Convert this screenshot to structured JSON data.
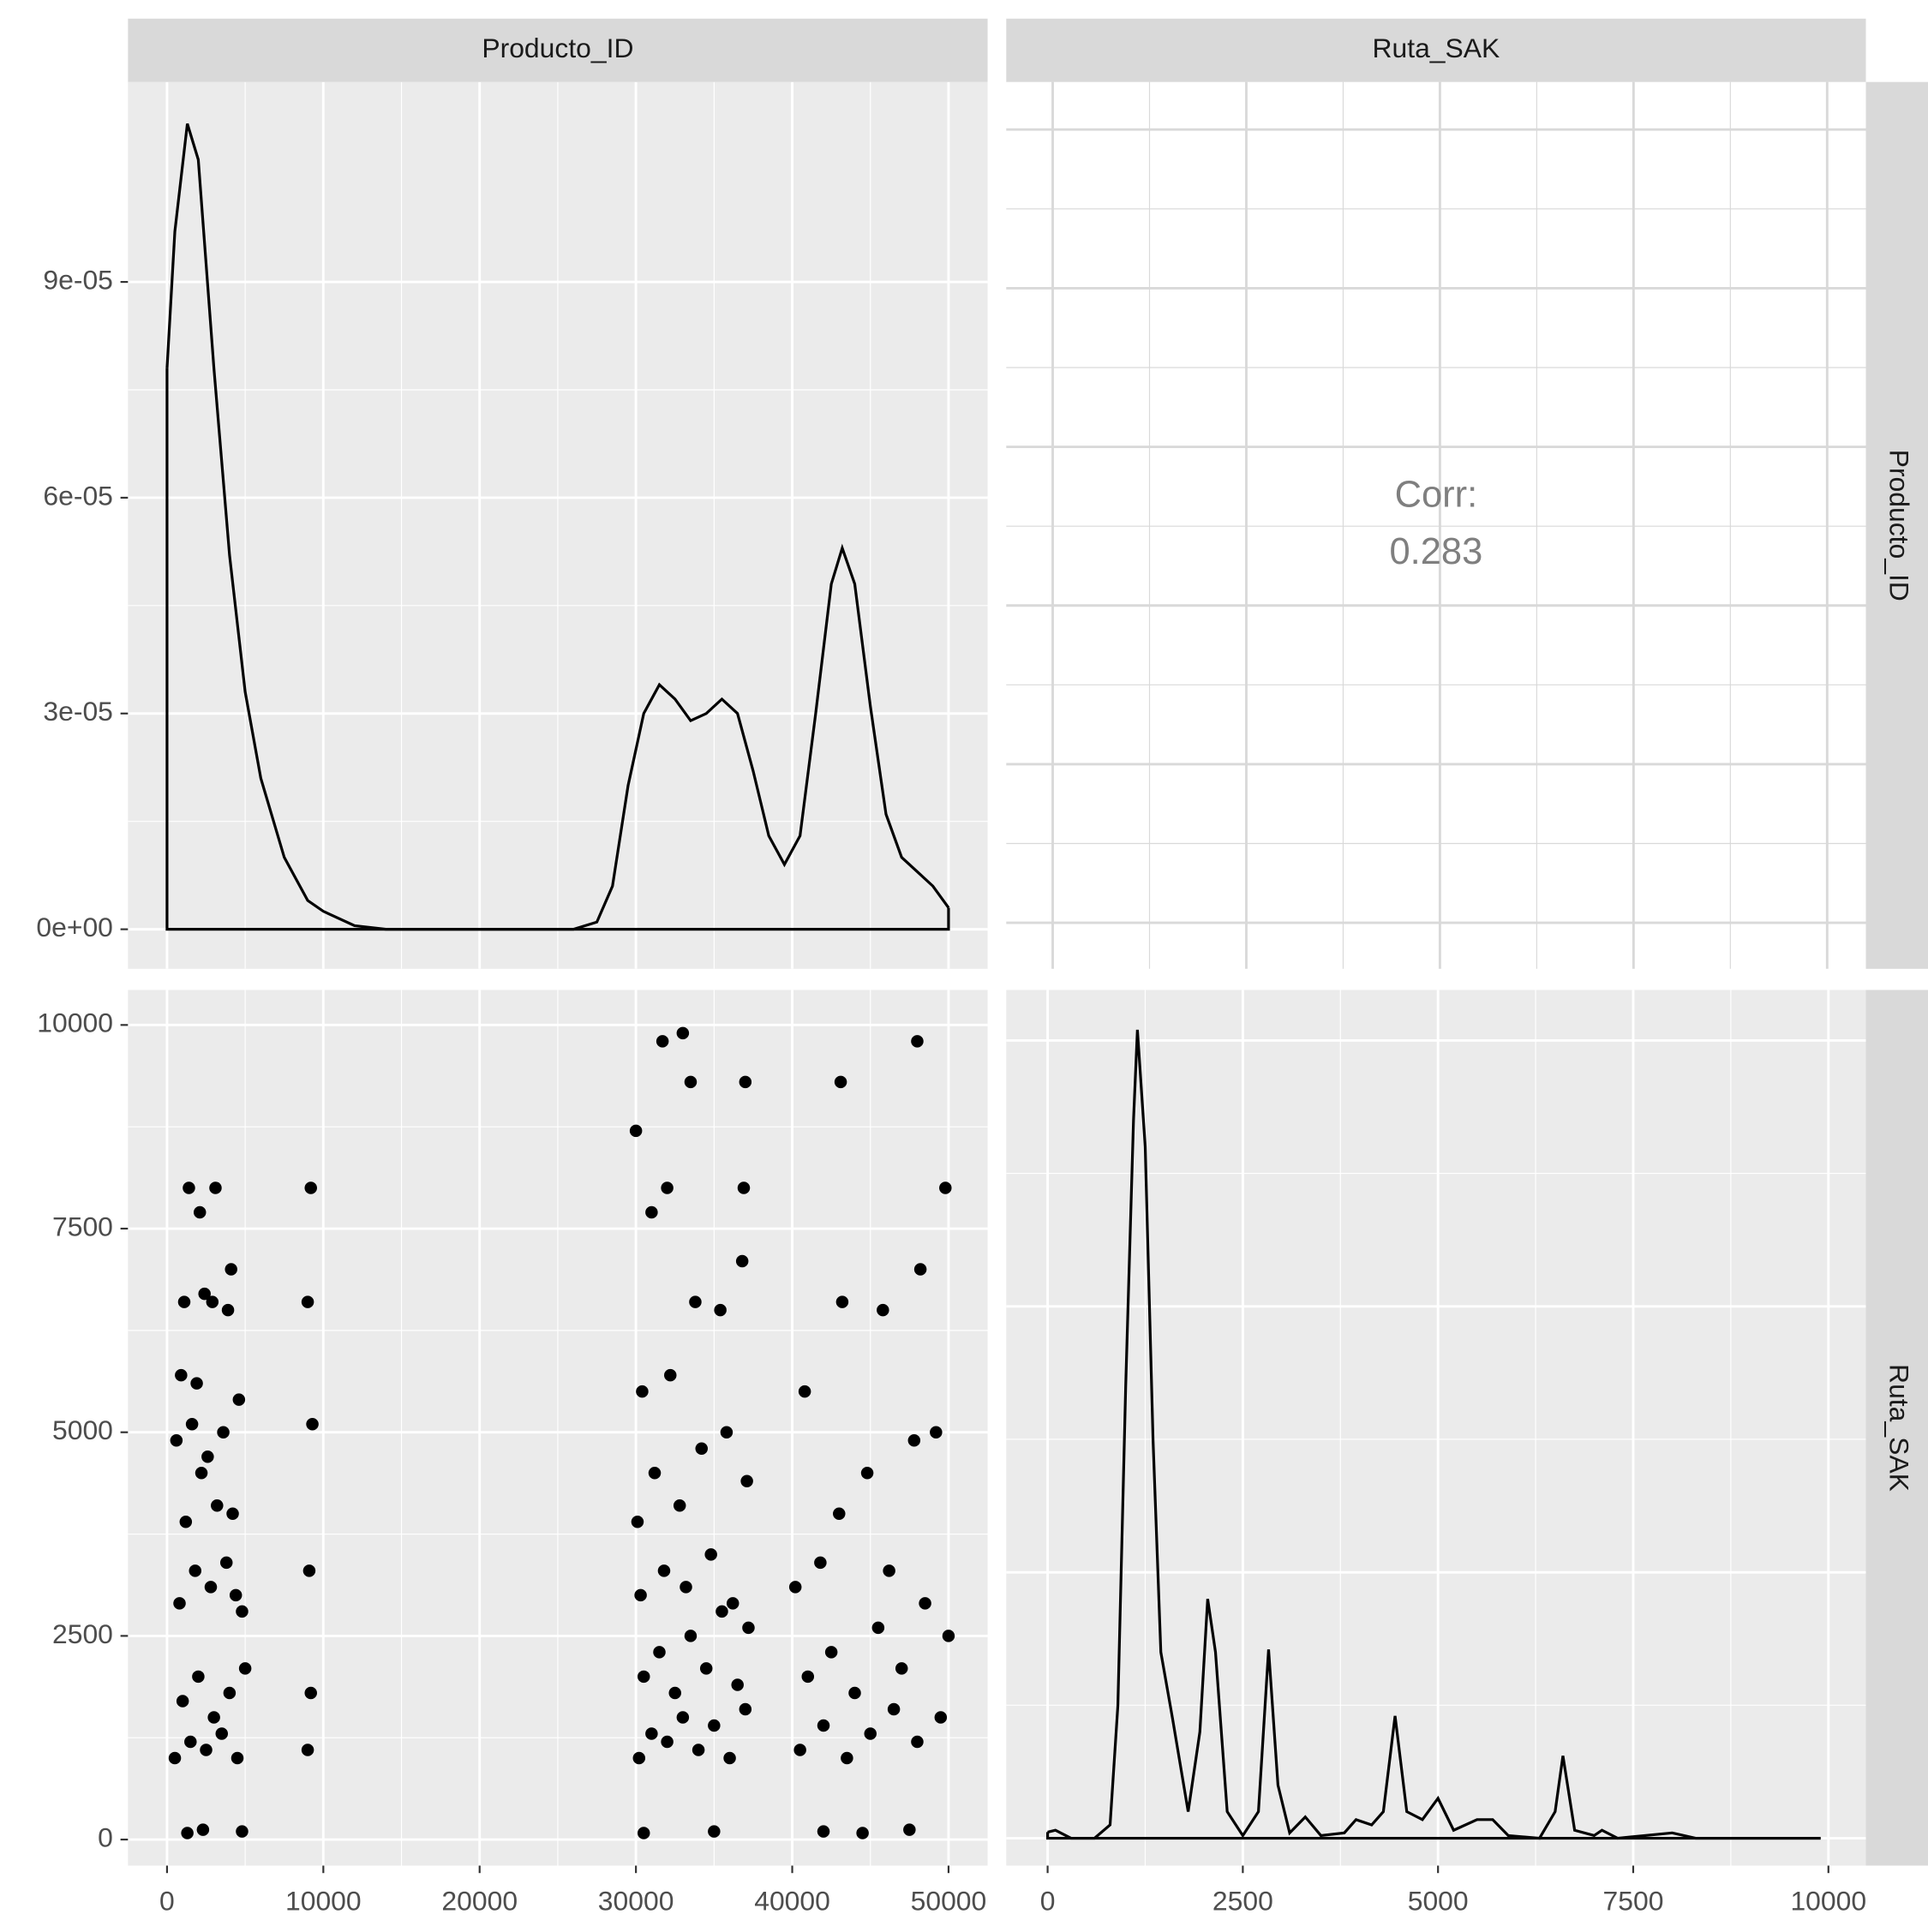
{
  "chart_data": [
    {
      "type": "density",
      "strip_top": "Producto_ID",
      "color": "#000000",
      "x": [
        0,
        500,
        1300,
        2000,
        3000,
        4000,
        5000,
        6000,
        7500,
        9000,
        10000,
        12000,
        14000,
        20000,
        26000,
        27500,
        28500,
        29500,
        30500,
        31500,
        32500,
        33500,
        34500,
        35500,
        36500,
        37500,
        38500,
        39500,
        40500,
        41500,
        42500,
        43200,
        44000,
        45000,
        46000,
        47000,
        48000,
        49000,
        50000
      ],
      "y": [
        7.8e-05,
        9.7e-05,
        0.000112,
        0.000107,
        7.8e-05,
        5.2e-05,
        3.3e-05,
        2.1e-05,
        1e-05,
        4e-06,
        2.5e-06,
        5e-07,
        0,
        0,
        0,
        1e-06,
        6e-06,
        2e-05,
        3e-05,
        3.4e-05,
        3.2e-05,
        2.9e-05,
        3e-05,
        3.2e-05,
        3e-05,
        2.2e-05,
        1.3e-05,
        9e-06,
        1.3e-05,
        3e-05,
        4.8e-05,
        5.3e-05,
        4.8e-05,
        3.1e-05,
        1.6e-05,
        1e-05,
        8e-06,
        6e-06,
        3e-06
      ],
      "xlim": [
        -2500,
        52500
      ],
      "ylim": [
        -5.5e-06,
        0.0001178
      ],
      "xticks": [
        0,
        10000,
        20000,
        30000,
        40000,
        50000
      ],
      "yticks": [
        {
          "value": 0,
          "label": "0e+00"
        },
        {
          "value": 3e-05,
          "label": "3e-05"
        },
        {
          "value": 6e-05,
          "label": "6e-05"
        },
        {
          "value": 9e-05,
          "label": "9e-05"
        }
      ]
    },
    {
      "type": "correlation",
      "strip_top": "Ruta_SAK",
      "strip_right": "Producto_ID",
      "label": "Corr:",
      "value": 0.283,
      "color": "#7f7f7f",
      "xlim": [
        -600,
        10500
      ],
      "ylim": [
        -2900,
        53000
      ],
      "xticks": [
        0,
        2500,
        5000,
        7500,
        10000
      ],
      "yticks": [
        0,
        10000,
        20000,
        30000,
        40000,
        50000
      ]
    },
    {
      "type": "scatter",
      "color": "#000000",
      "x": [
        500,
        1500,
        2500,
        3500,
        4500,
        1000,
        2000,
        3000,
        4000,
        5000,
        800,
        1800,
        2800,
        3800,
        4800,
        1200,
        2200,
        3200,
        4200,
        600,
        1600,
        2600,
        3600,
        4600,
        900,
        1900,
        2900,
        3900,
        1100,
        2100,
        3100,
        4100,
        1300,
        2300,
        4800,
        1400,
        2400,
        4400,
        9000,
        9200,
        9100,
        9300,
        9000,
        9200,
        30200,
        31000,
        32000,
        33000,
        34000,
        35000,
        36000,
        37000,
        30500,
        31500,
        32500,
        33500,
        34500,
        35500,
        36500,
        37200,
        30300,
        31800,
        33200,
        34800,
        36200,
        30100,
        31200,
        32800,
        34200,
        35800,
        37100,
        30400,
        32200,
        33800,
        35400,
        36800,
        31000,
        32000,
        33500,
        30000,
        31700,
        35000,
        37000,
        30500,
        33000,
        36900,
        40500,
        42000,
        43500,
        45000,
        46500,
        48000,
        49500,
        41000,
        42500,
        44000,
        45500,
        47000,
        48500,
        50000,
        40200,
        41800,
        43000,
        44800,
        46200,
        47800,
        49200,
        40800,
        43200,
        45800,
        48200,
        49800,
        42000,
        44500,
        47500,
        43100,
        48000
      ],
      "y": [
        1000,
        1200,
        1100,
        1300,
        1000,
        1700,
        2000,
        1500,
        1800,
        2100,
        2900,
        3300,
        3100,
        3400,
        2800,
        3900,
        4500,
        4100,
        4000,
        4900,
        5100,
        4700,
        5000,
        5400,
        5700,
        5600,
        6600,
        6500,
        6600,
        7700,
        8000,
        7000,
        80,
        120,
        100,
        8000,
        6700,
        3000,
        1100,
        1800,
        3300,
        5100,
        6600,
        8000,
        1000,
        1300,
        1200,
        1500,
        1100,
        1400,
        1000,
        1600,
        2000,
        2300,
        1800,
        2500,
        2100,
        2800,
        1900,
        2600,
        3000,
        3300,
        3100,
        3500,
        2900,
        3900,
        4500,
        4100,
        4800,
        5000,
        4400,
        5500,
        5700,
        6600,
        6500,
        7100,
        7700,
        8000,
        9300,
        8700,
        9800,
        100,
        9300,
        80,
        9900,
        8000,
        1100,
        1400,
        1000,
        1300,
        1600,
        1200,
        1500,
        2000,
        2300,
        1800,
        2600,
        2100,
        2900,
        2500,
        3100,
        3400,
        4000,
        4500,
        3300,
        4900,
        5000,
        5500,
        6600,
        6500,
        7000,
        8000,
        100,
        80,
        120,
        9300,
        9800
      ],
      "xlim": [
        -2500,
        52500
      ],
      "ylim": [
        -320,
        10430
      ],
      "xticks": [
        0,
        10000,
        20000,
        30000,
        40000,
        50000
      ],
      "yticks": [
        0,
        2500,
        5000,
        7500,
        10000
      ]
    },
    {
      "type": "density",
      "strip_right": "Ruta_SAK",
      "color": "#000000",
      "x": [
        0,
        100,
        300,
        600,
        800,
        900,
        1000,
        1100,
        1150,
        1250,
        1350,
        1450,
        1600,
        1800,
        1950,
        2050,
        2150,
        2300,
        2500,
        2700,
        2830,
        2950,
        3100,
        3300,
        3500,
        3800,
        3950,
        4150,
        4300,
        4450,
        4600,
        4800,
        5000,
        5200,
        5500,
        5700,
        5900,
        6300,
        6500,
        6600,
        6750,
        7000,
        7100,
        7300,
        8000,
        8300,
        9900
      ],
      "y": [
        2.3e-05,
        3e-05,
        0,
        0,
        5e-05,
        0.0005,
        0.0017,
        0.0027,
        0.00304,
        0.0026,
        0.0015,
        0.0007,
        0.00045,
        0.0001,
        0.0004,
        0.0009,
        0.0007,
        0.0001,
        1e-05,
        0.0001,
        0.00071,
        0.0002,
        2e-05,
        8e-05,
        1e-05,
        2e-05,
        7e-05,
        5e-05,
        0.0001,
        0.00046,
        0.0001,
        7e-05,
        0.00015,
        3e-05,
        7e-05,
        7e-05,
        1e-05,
        0,
        0.0001,
        0.00031,
        3e-05,
        1e-05,
        3e-05,
        0,
        2e-05,
        0,
        0
      ],
      "xlim": [
        -530,
        10480
      ],
      "ylim": [
        -0.000103,
        0.00319
      ],
      "xticks": [
        0,
        2500,
        5000,
        7500,
        10000
      ],
      "yticks": [
        0,
        0.001,
        0.002,
        0.003
      ]
    }
  ]
}
